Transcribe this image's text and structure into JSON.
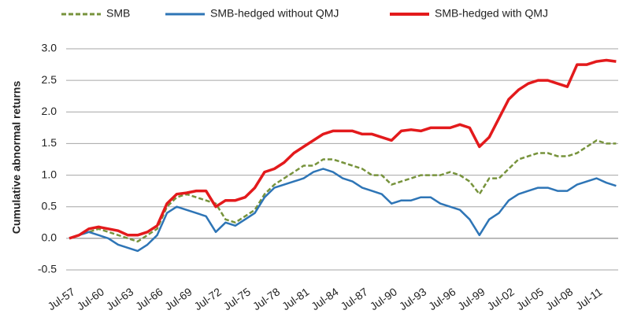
{
  "chart_data": {
    "type": "line",
    "y_label": "Cumulative abnormal returns",
    "categories": [
      "Jul-57",
      null,
      null,
      "Jul-60",
      null,
      null,
      "Jul-63",
      null,
      null,
      "Jul-66",
      null,
      null,
      "Jul-69",
      null,
      null,
      "Jul-72",
      null,
      null,
      "Jul-75",
      null,
      null,
      "Jul-78",
      null,
      null,
      "Jul-81",
      null,
      null,
      "Jul-84",
      null,
      null,
      "Jul-87",
      null,
      null,
      "Jul-90",
      null,
      null,
      "Jul-93",
      null,
      null,
      "Jul-96",
      null,
      null,
      "Jul-99",
      null,
      null,
      "Jul-02",
      null,
      null,
      "Jul-05",
      null,
      null,
      "Jul-08",
      null,
      null,
      "Jul-11",
      null,
      null
    ],
    "series": [
      {
        "name": "SMB",
        "color": "#77933c",
        "dash": true,
        "values": [
          0,
          0.05,
          0.1,
          0.15,
          0.1,
          0.05,
          0.0,
          -0.05,
          0.05,
          0.15,
          0.5,
          0.65,
          0.7,
          0.65,
          0.6,
          0.55,
          0.3,
          0.25,
          0.35,
          0.45,
          0.7,
          0.85,
          0.95,
          1.05,
          1.15,
          1.15,
          1.25,
          1.25,
          1.2,
          1.15,
          1.1,
          1.0,
          1.0,
          0.85,
          0.9,
          0.95,
          1.0,
          1.0,
          1.0,
          1.05,
          1.0,
          0.9,
          0.7,
          0.95,
          0.95,
          1.1,
          1.25,
          1.3,
          1.35,
          1.35,
          1.3,
          1.3,
          1.35,
          1.45,
          1.55,
          1.5,
          1.5
        ]
      },
      {
        "name": "SMB-hedged without QMJ",
        "color": "#2e75b6",
        "dash": false,
        "values": [
          0,
          0.05,
          0.1,
          0.05,
          0.0,
          -0.1,
          -0.15,
          -0.2,
          -0.1,
          0.05,
          0.4,
          0.5,
          0.45,
          0.4,
          0.35,
          0.1,
          0.25,
          0.2,
          0.3,
          0.4,
          0.65,
          0.8,
          0.85,
          0.9,
          0.95,
          1.05,
          1.1,
          1.05,
          0.95,
          0.9,
          0.8,
          0.75,
          0.7,
          0.55,
          0.6,
          0.6,
          0.65,
          0.65,
          0.55,
          0.5,
          0.45,
          0.3,
          0.05,
          0.3,
          0.4,
          0.6,
          0.7,
          0.75,
          0.8,
          0.8,
          0.75,
          0.75,
          0.85,
          0.9,
          0.95,
          0.88,
          0.83
        ]
      },
      {
        "name": "SMB-hedged with QMJ",
        "color": "#e31a1c",
        "dash": false,
        "values": [
          0,
          0.05,
          0.15,
          0.18,
          0.15,
          0.12,
          0.05,
          0.05,
          0.1,
          0.2,
          0.55,
          0.7,
          0.72,
          0.75,
          0.75,
          0.5,
          0.6,
          0.6,
          0.65,
          0.8,
          1.05,
          1.1,
          1.2,
          1.35,
          1.45,
          1.55,
          1.65,
          1.7,
          1.7,
          1.7,
          1.65,
          1.65,
          1.6,
          1.55,
          1.7,
          1.72,
          1.7,
          1.75,
          1.75,
          1.75,
          1.8,
          1.75,
          1.45,
          1.6,
          1.9,
          2.2,
          2.35,
          2.45,
          2.5,
          2.5,
          2.45,
          2.4,
          2.75,
          2.75,
          2.8,
          2.82,
          2.8
        ]
      }
    ],
    "ylim": [
      -0.5,
      3.0
    ],
    "yticks": [
      {
        "value": -0.5,
        "label": "-0.5"
      },
      {
        "value": 0,
        "label": "0.0"
      },
      {
        "value": 0.5,
        "label": "0.5"
      },
      {
        "value": 1.0,
        "label": "1.0"
      },
      {
        "value": 1.5,
        "label": "1.5"
      },
      {
        "value": 2.0,
        "label": "2.0"
      },
      {
        "value": 2.5,
        "label": "2.5"
      },
      {
        "value": 3.0,
        "label": "3.0"
      }
    ],
    "grid": true,
    "legend": "top"
  }
}
